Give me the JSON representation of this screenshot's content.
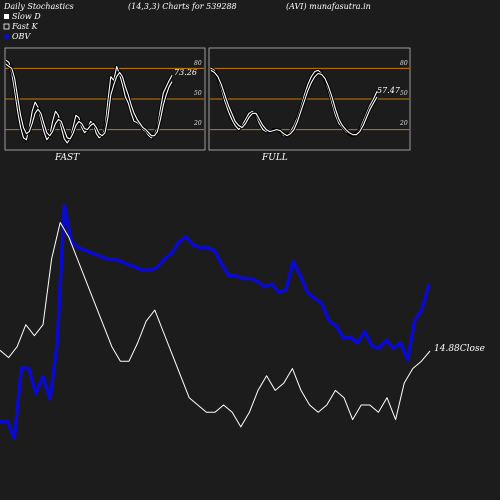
{
  "header": {
    "left": "Daily Stochastics",
    "params": "(14,3,3) Charts for 539288",
    "right": "(AVI) munafasutra.in"
  },
  "legend": [
    {
      "label": "Slow  D",
      "color": "#ffffff"
    },
    {
      "label": "Fast  K",
      "color": "#ffffff"
    },
    {
      "label": "OBV",
      "color": "#0000cc"
    }
  ],
  "colors": {
    "background": "#1c1c1c",
    "obv": "#0a0acc",
    "price": "#ffffff",
    "band": "#c87a00"
  },
  "chart_data": [
    {
      "type": "line",
      "title": "FAST",
      "last_value_label": "73.26",
      "ylim": [
        0,
        100
      ],
      "yticks": [
        "80",
        "50",
        "20"
      ],
      "bands": [
        80,
        50,
        20
      ],
      "series": [
        {
          "values": [
            88,
            86,
            75,
            58,
            38,
            22,
            12,
            10,
            22,
            38,
            47,
            42,
            30,
            18,
            10,
            14,
            28,
            38,
            34,
            22,
            11,
            7,
            11,
            22,
            34,
            32,
            22,
            17,
            20,
            28,
            26,
            16,
            12,
            14,
            22,
            48,
            72,
            68,
            82,
            74,
            64,
            52,
            46,
            36,
            28,
            27,
            24,
            20,
            18,
            14,
            12,
            16,
            22,
            40,
            56,
            62,
            68,
            73.26
          ]
        },
        {
          "values": [
            84,
            82,
            80,
            70,
            52,
            34,
            22,
            16,
            18,
            26,
            36,
            40,
            36,
            26,
            17,
            14,
            18,
            26,
            30,
            28,
            20,
            12,
            11,
            16,
            24,
            28,
            26,
            21,
            20,
            24,
            26,
            22,
            16,
            14,
            17,
            32,
            54,
            64,
            72,
            76,
            72,
            62,
            54,
            44,
            36,
            30,
            26,
            22,
            20,
            17,
            14,
            14,
            18,
            30,
            44,
            54,
            62,
            67
          ]
        }
      ]
    },
    {
      "type": "line",
      "title": "FULL",
      "last_value_label": "57.47",
      "ylim": [
        0,
        100
      ],
      "yticks": [
        "80",
        "50",
        "20"
      ],
      "bands": [
        80,
        50,
        20
      ],
      "series": [
        {
          "values": [
            80,
            78,
            70,
            60,
            48,
            38,
            30,
            24,
            20,
            24,
            30,
            36,
            38,
            34,
            26,
            20,
            18,
            18,
            20,
            20,
            18,
            14,
            14,
            18,
            24,
            32,
            42,
            54,
            64,
            72,
            77,
            78,
            75,
            68,
            58,
            46,
            34,
            26,
            22,
            18,
            16,
            14,
            16,
            20,
            28,
            36,
            44,
            50,
            57.47
          ]
        },
        {
          "values": [
            78,
            76,
            72,
            64,
            54,
            44,
            36,
            28,
            24,
            22,
            26,
            32,
            36,
            36,
            30,
            24,
            20,
            18,
            19,
            20,
            19,
            16,
            14,
            16,
            20,
            28,
            38,
            48,
            58,
            66,
            72,
            75,
            74,
            70,
            62,
            52,
            40,
            30,
            24,
            20,
            17,
            15,
            15,
            18,
            24,
            32,
            40,
            46,
            52
          ]
        }
      ]
    },
    {
      "type": "line",
      "title": "",
      "close_label": "14.88Close",
      "series": [
        {
          "values": [
            1.6,
            1.6,
            1.0,
            3.5,
            3.5,
            2.6,
            3.2,
            2.4,
            4.4,
            9.3,
            8.0,
            7.8,
            7.7,
            7.6,
            7.5,
            7.4,
            7.4,
            7.3,
            7.2,
            7.1,
            7.0,
            7.0,
            7.1,
            7.4,
            7.6,
            8.0,
            8.2,
            7.9,
            7.8,
            7.8,
            7.7,
            7.2,
            6.8,
            6.8,
            6.7,
            6.7,
            6.6,
            6.4,
            6.5,
            6.2,
            6.3,
            7.3,
            6.8,
            6.2,
            6.0,
            5.8,
            5.2,
            5.0,
            4.6,
            4.6,
            4.4,
            4.8,
            4.3,
            4.2,
            4.5,
            4.2,
            4.4,
            3.8,
            5.2,
            5.6,
            6.5
          ]
        },
        {
          "values": [
            14.9,
            14.7,
            15.0,
            15.6,
            15.3,
            15.6,
            17.4,
            18.4,
            18.0,
            17.4,
            16.8,
            16.2,
            15.6,
            15.0,
            14.6,
            14.6,
            15.1,
            15.7,
            16.0,
            15.4,
            14.8,
            14.2,
            13.6,
            13.4,
            13.2,
            13.2,
            13.4,
            13.2,
            12.8,
            13.2,
            13.8,
            14.2,
            13.8,
            14.0,
            14.4,
            13.8,
            13.4,
            13.2,
            13.4,
            13.8,
            13.6,
            13.0,
            13.4,
            13.4,
            13.2,
            13.6,
            13.0,
            14.0,
            14.4,
            14.6,
            14.88
          ]
        }
      ]
    }
  ]
}
